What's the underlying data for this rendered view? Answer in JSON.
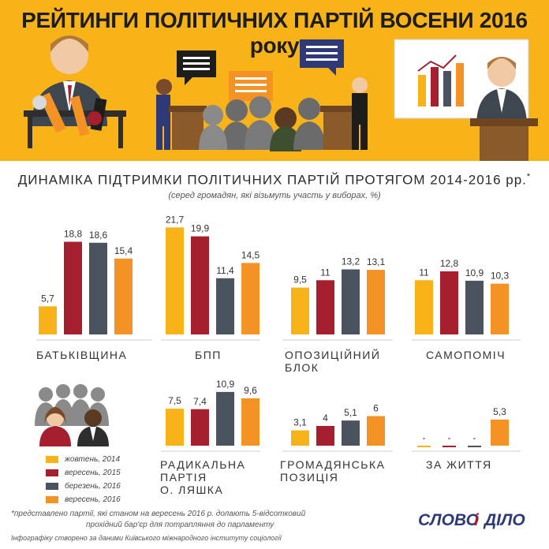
{
  "header": {
    "title": "РЕЙТИНГИ ПОЛІТИЧНИХ ПАРТІЙ ВОСЕНИ 2016 року"
  },
  "chart_header": {
    "title": "ДИНАМІКА ПІДТРИМКИ ПОЛІТИЧНИХ ПАРТІЙ ПРОТЯГОМ 2014-2016 рр.",
    "title_mark": "*",
    "note": "(серед громадян, які візьмуть участь у виборах, %)"
  },
  "colors": {
    "banner": "#f8b318",
    "text": "#1d1d1b"
  },
  "chart_data": {
    "type": "bar",
    "series": [
      {
        "name": "жовтень, 2014",
        "color": "#f8b318"
      },
      {
        "name": "вересень, 2015",
        "color": "#a61f2f"
      },
      {
        "name": "березень, 2016",
        "color": "#4b535f"
      },
      {
        "name": "вересень, 2016",
        "color": "#f39325"
      }
    ],
    "groups": [
      {
        "name": "БАТЬКІВЩИНА",
        "values": [
          5.7,
          18.8,
          18.6,
          15.4
        ],
        "labels": [
          "5,7",
          "18,8",
          "18,6",
          "15,4"
        ]
      },
      {
        "name": "БПП",
        "values": [
          21.7,
          19.9,
          11.4,
          14.5
        ],
        "labels": [
          "21,7",
          "19,9",
          "11,4",
          "14,5"
        ]
      },
      {
        "name": "ОПОЗИЦІЙНИЙ БЛОК",
        "values": [
          9.5,
          11,
          13.2,
          13.1
        ],
        "labels": [
          "9,5",
          "11",
          "13,2",
          "13,1"
        ]
      },
      {
        "name": "САМОПОМІЧ",
        "values": [
          11,
          12.8,
          10.9,
          10.3
        ],
        "labels": [
          "11",
          "12,8",
          "10,9",
          "10,3"
        ]
      },
      {
        "name": "РАДИКАЛЬНА ПАРТІЯ О. ЛЯШКА",
        "values": [
          7.5,
          7.4,
          10.9,
          9.6
        ],
        "labels": [
          "7,5",
          "7,4",
          "10,9",
          "9,6"
        ]
      },
      {
        "name": "ГРОМАДЯНСЬКА ПОЗИЦІЯ",
        "values": [
          3.1,
          4,
          5.1,
          6
        ],
        "labels": [
          "3,1",
          "4",
          "5,1",
          "6"
        ]
      },
      {
        "name": "ЗА ЖИТТЯ",
        "values": [
          0,
          0,
          0,
          5.3
        ],
        "labels": [
          "-",
          "-",
          "-",
          "5,3"
        ]
      }
    ]
  },
  "footnote": {
    "line1": "*представлено партії, які станом на вересень 2016 р. долають 5-відсотковий",
    "line2": "прохідний бар'єр для потрапляння до парламенту"
  },
  "source": "Інфографіку створено за даними Київського міжнародного інституту соціології",
  "logo": {
    "word1": "СЛОВО",
    "word2": "і",
    "word3": "ДІЛО"
  }
}
